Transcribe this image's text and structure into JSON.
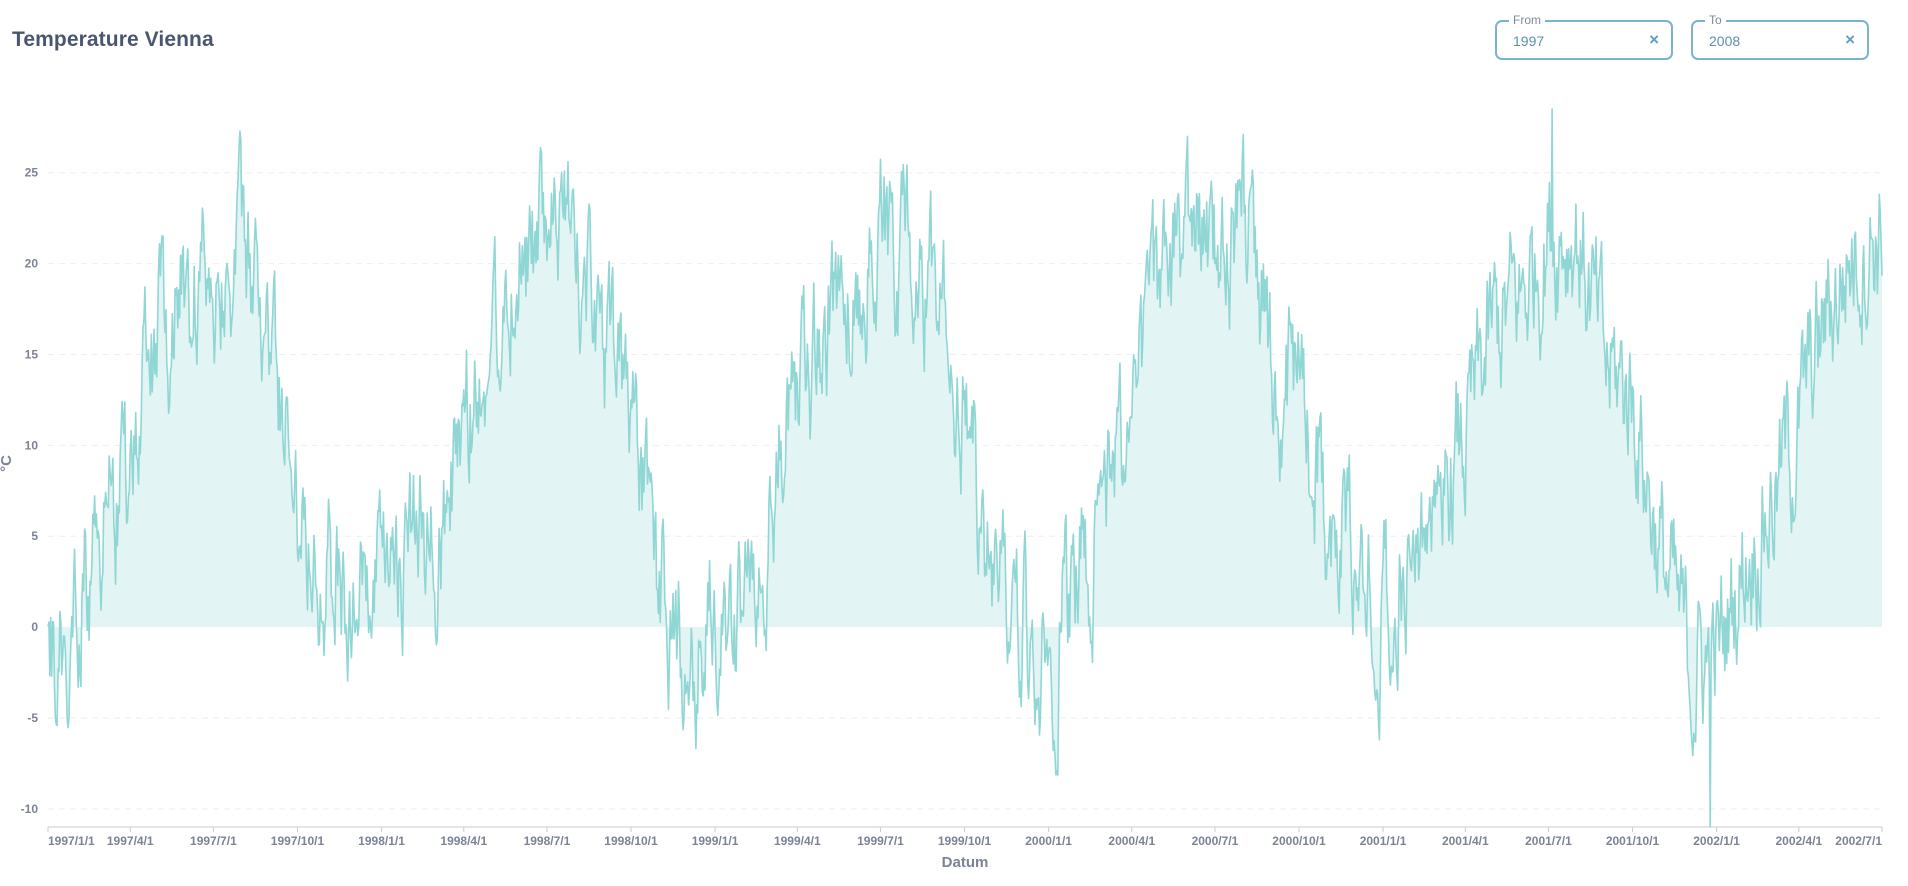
{
  "header": {
    "title": "Temperature Vienna"
  },
  "filters": {
    "from": {
      "legend": "From",
      "value": "1997",
      "clear_icon": "close-icon",
      "clear_glyph": "×"
    },
    "to": {
      "legend": "To",
      "value": "2008",
      "clear_icon": "close-icon",
      "clear_glyph": "×"
    }
  },
  "colors": {
    "line": "#8fd6d5",
    "area": "#e2f4f3",
    "grid": "#eceef2",
    "axis": "#c7cbd3",
    "accent": "#7bb3cf"
  },
  "chart_data": {
    "type": "area",
    "xlabel": "Datum",
    "ylabel": "°C",
    "ylim": [
      -11,
      29
    ],
    "xlim": [
      "1997/1/1",
      "2002/7/1"
    ],
    "grid": "horizontal",
    "y_ticks": [
      -10,
      -5,
      0,
      5,
      10,
      15,
      20,
      25
    ],
    "x_ticks": [
      "1997/1/1",
      "1997/4/1",
      "1997/7/1",
      "1997/10/1",
      "1998/1/1",
      "1998/4/1",
      "1998/7/1",
      "1998/10/1",
      "1999/1/1",
      "1999/4/1",
      "1999/7/1",
      "1999/10/1",
      "2000/1/1",
      "2000/4/1",
      "2000/7/1",
      "2000/10/1",
      "2001/1/1",
      "2001/4/1",
      "2001/7/1",
      "2001/10/1",
      "2002/1/1",
      "2002/4/1",
      "2002/7/1"
    ],
    "series": [
      {
        "frequency": "monthly (approximate monthly mean of the daily series)",
        "x": [
          "1997/1/1",
          "1997/2/1",
          "1997/3/1",
          "1997/4/1",
          "1997/5/1",
          "1997/6/1",
          "1997/7/1",
          "1997/8/1",
          "1997/9/1",
          "1997/10/1",
          "1997/11/1",
          "1997/12/1",
          "1998/1/1",
          "1998/2/1",
          "1998/3/1",
          "1998/4/1",
          "1998/5/1",
          "1998/6/1",
          "1998/7/1",
          "1998/8/1",
          "1998/9/1",
          "1998/10/1",
          "1998/11/1",
          "1998/12/1",
          "1999/1/1",
          "1999/2/1",
          "1999/3/1",
          "1999/4/1",
          "1999/5/1",
          "1999/6/1",
          "1999/7/1",
          "1999/8/1",
          "1999/9/1",
          "1999/10/1",
          "1999/11/1",
          "1999/12/1",
          "2000/1/1",
          "2000/2/1",
          "2000/3/1",
          "2000/4/1",
          "2000/5/1",
          "2000/6/1",
          "2000/7/1",
          "2000/8/1",
          "2000/9/1",
          "2000/10/1",
          "2000/11/1",
          "2000/12/1",
          "2001/1/1",
          "2001/2/1",
          "2001/3/1",
          "2001/4/1",
          "2001/5/1",
          "2001/6/1",
          "2001/7/1",
          "2001/8/1",
          "2001/9/1",
          "2001/10/1",
          "2001/11/1",
          "2001/12/1",
          "2002/1/1",
          "2002/2/1",
          "2002/3/1",
          "2002/4/1",
          "2002/5/1",
          "2002/6/1",
          "2002/7/1"
        ],
        "values": [
          -3,
          1,
          6,
          8,
          16,
          19,
          20,
          20,
          15,
          8,
          4,
          1,
          1,
          5,
          4,
          11,
          16,
          21,
          21,
          22,
          15,
          11,
          2,
          -2,
          0,
          1,
          7,
          12,
          16,
          19,
          21,
          20,
          18,
          11,
          3,
          1,
          -2,
          3,
          6,
          13,
          18,
          22,
          20,
          23,
          15,
          13,
          7,
          3,
          2,
          3,
          7,
          10,
          16,
          18,
          22,
          22,
          14,
          13,
          4,
          -2,
          -2,
          4,
          7,
          11,
          17,
          21,
          22
        ]
      }
    ],
    "extremes_approx": {
      "min": {
        "x": "2001/12/25",
        "value": -11
      },
      "max": {
        "x": "2001/7/5",
        "value": 28.5
      }
    }
  }
}
